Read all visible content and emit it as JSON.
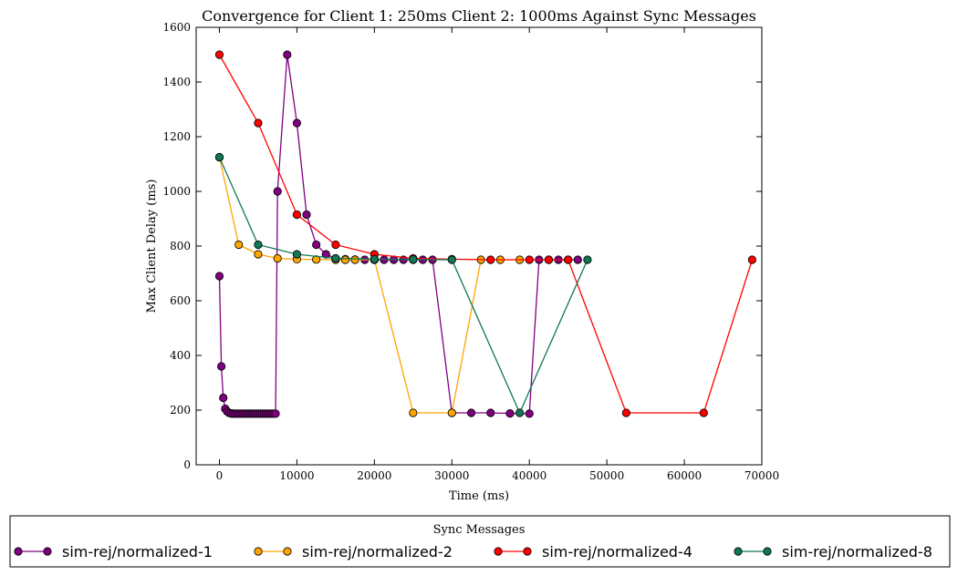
{
  "chart_data": {
    "type": "line",
    "title": "Convergence for Client 1: 250ms Client 2: 1000ms Against Sync Messages",
    "xlabel": "Time (ms)",
    "ylabel": "Max Client Delay (ms)",
    "xlim": [
      -3000,
      70000
    ],
    "ylim": [
      0,
      1600
    ],
    "xticks": [
      0,
      10000,
      20000,
      30000,
      40000,
      50000,
      60000,
      70000
    ],
    "xtick_labels": [
      "0",
      "10000",
      "20000",
      "30000",
      "40000",
      "50000",
      "60000",
      "70000"
    ],
    "yticks": [
      0,
      200,
      400,
      600,
      800,
      1000,
      1200,
      1400,
      1600
    ],
    "ytick_labels": [
      "0",
      "200",
      "400",
      "600",
      "800",
      "1000",
      "1200",
      "1400",
      "1600"
    ],
    "grid": false,
    "legend": {
      "title": "Sync Messages",
      "placement": "bottom"
    },
    "series": [
      {
        "name": "sim-rej/normalized-1",
        "color": "#800080",
        "x": [
          0,
          250,
          500,
          750,
          1000,
          1250,
          1500,
          1750,
          2000,
          2250,
          2500,
          2750,
          3000,
          3250,
          3500,
          3750,
          4000,
          4250,
          4500,
          4750,
          5000,
          5250,
          5500,
          5750,
          6000,
          6250,
          6500,
          6750,
          7000,
          7250,
          7500,
          8750,
          10000,
          11250,
          12500,
          13750,
          15000,
          16250,
          17500,
          18750,
          20000,
          21250,
          22500,
          23750,
          25000,
          26250,
          27500,
          30000,
          32500,
          35000,
          37500,
          40000,
          41250,
          42500,
          43750,
          45000,
          46250
        ],
        "values": [
          690,
          360,
          245,
          205,
          195,
          190,
          188,
          187,
          187,
          187,
          187,
          187,
          187,
          187,
          187,
          187,
          187,
          187,
          187,
          187,
          187,
          187,
          187,
          187,
          187,
          187,
          187,
          187,
          187,
          187,
          1000,
          1500,
          1250,
          915,
          805,
          770,
          755,
          752,
          751,
          750,
          750,
          750,
          750,
          750,
          750,
          750,
          750,
          190,
          190,
          190,
          188,
          187,
          750,
          750,
          750,
          750,
          750
        ]
      },
      {
        "name": "sim-rej/normalized-2",
        "color": "#FFA500",
        "x": [
          0,
          2500,
          5000,
          7500,
          10000,
          12500,
          15000,
          16250,
          17500,
          20000,
          25000,
          30000,
          33750,
          36250,
          38750
        ],
        "values": [
          1125,
          805,
          770,
          755,
          752,
          751,
          750,
          750,
          750,
          750,
          190,
          190,
          750,
          750,
          750
        ]
      },
      {
        "name": "sim-rej/normalized-4",
        "color": "#FF0000",
        "x": [
          0,
          5000,
          10000,
          15000,
          20000,
          25000,
          30000,
          35000,
          40000,
          42500,
          45000,
          52500,
          62500,
          68750
        ],
        "values": [
          1500,
          1250,
          915,
          805,
          770,
          755,
          752,
          750,
          750,
          750,
          750,
          190,
          190,
          750
        ]
      },
      {
        "name": "sim-rej/normalized-8",
        "color": "#117755",
        "x": [
          0,
          5000,
          10000,
          15000,
          20000,
          25000,
          30000,
          38750,
          47500
        ],
        "values": [
          1125,
          805,
          770,
          755,
          752,
          751,
          750,
          190,
          750
        ]
      }
    ]
  }
}
